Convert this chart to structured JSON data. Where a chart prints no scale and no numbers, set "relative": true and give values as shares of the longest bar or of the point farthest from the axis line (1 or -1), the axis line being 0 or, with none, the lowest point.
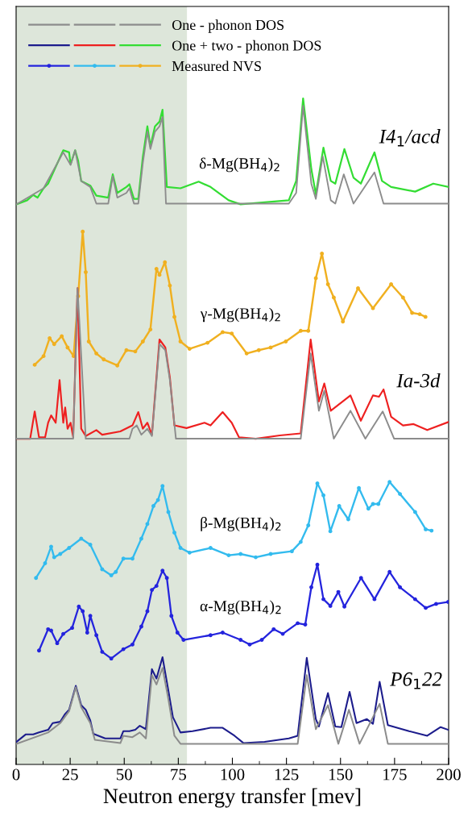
{
  "chart_data": {
    "type": "line",
    "relative": true,
    "xlabel": "Neutron energy transfer [mev]",
    "xlim": [
      0,
      200
    ],
    "xticks": [
      0,
      25,
      50,
      75,
      100,
      125,
      150,
      175,
      200
    ],
    "grid": false,
    "legend": "top left",
    "line_style": "solid",
    "bands": [
      {
        "axis": "x",
        "from": 0,
        "to": 79,
        "color": "#dde6da"
      }
    ],
    "annotations": [
      "δ-Mg(BH$_{4}$)$_{2}$",
      "I4$_{1}$/acd",
      "γ-Mg(BH$_{4}$)$_{2}$",
      "Ia-3d",
      "β-Mg(BH$_{4}$)$_{2}$",
      "α-Mg(BH$_{4}$)$_{2}$",
      "P6$_{1}$22"
    ],
    "series": [
      {
        "color": "#8c8c8c",
        "marker": "none",
        "x": [
          0.2,
          12.7,
          21.8,
          25.2,
          27.3,
          30.1,
          34.3,
          37.1,
          42.6,
          44.7,
          46.8,
          51.0,
          52.4,
          54.5,
          56.5,
          58.6,
          60.7,
          62.1,
          64.2,
          66.3,
          67.7,
          69.3,
          126.1,
          129.5,
          132.7,
          136.5,
          138.6,
          141.8,
          145.5,
          147.6,
          151.5,
          156.0,
          165.7,
          169.9,
          199.8
        ],
        "values": [
          0.841,
          0.865,
          0.919,
          0.9,
          0.922,
          0.876,
          0.867,
          0.842,
          0.842,
          0.883,
          0.851,
          0.858,
          0.865,
          0.842,
          0.842,
          0.903,
          0.95,
          0.924,
          0.95,
          0.958,
          0.972,
          0.842,
          0.842,
          0.858,
          0.989,
          0.872,
          0.849,
          0.913,
          0.847,
          0.842,
          0.886,
          0.842,
          0.889,
          0.842,
          0.842
        ]
      },
      {
        "color": "#8c8c8c",
        "marker": "none",
        "x": [
          0.2,
          26.4,
          28.4,
          32.2,
          52.4,
          53.8,
          55.8,
          57.9,
          60.7,
          62.8,
          66.3,
          69.0,
          71.1,
          73.9,
          131.6,
          136.2,
          140.0,
          142.5,
          146.9,
          154.6,
          161.5,
          169.5,
          174.8,
          199.8
        ],
        "values": [
          0.489,
          0.489,
          0.715,
          0.489,
          0.489,
          0.504,
          0.509,
          0.495,
          0.504,
          0.493,
          0.631,
          0.622,
          0.577,
          0.489,
          0.489,
          0.617,
          0.531,
          0.561,
          0.489,
          0.531,
          0.489,
          0.53,
          0.489,
          0.489
        ]
      },
      {
        "name": "One - phonon DOS",
        "color": "#8c8c8c",
        "marker": "none",
        "x": [
          0.2,
          14.8,
          20.4,
          24.5,
          27.6,
          30.1,
          34.3,
          36.4,
          48.2,
          49.6,
          53.8,
          57.2,
          60.0,
          62.8,
          64.9,
          67.7,
          70.4,
          73.2,
          76.0,
          130.2,
          134.4,
          138.6,
          144.2,
          149.0,
          153.9,
          158.8,
          168.1,
          171.9,
          199.8
        ],
        "values": [
          0.031,
          0.048,
          0.062,
          0.08,
          0.116,
          0.086,
          0.062,
          0.037,
          0.032,
          0.043,
          0.041,
          0.048,
          0.039,
          0.134,
          0.12,
          0.145,
          0.098,
          0.043,
          0.031,
          0.031,
          0.134,
          0.053,
          0.089,
          0.031,
          0.082,
          0.031,
          0.091,
          0.031,
          0.031
        ]
      },
      {
        "color": "#1c1c8c",
        "marker": "none",
        "x": [
          0.2,
          4.4,
          7.9,
          10.6,
          14.8,
          16.9,
          20.4,
          22.5,
          24.5,
          27.6,
          30.1,
          32.2,
          34.3,
          35.7,
          41.2,
          48.2,
          49.6,
          52.4,
          55.1,
          57.2,
          60.0,
          62.8,
          64.9,
          67.7,
          70.4,
          72.5,
          76.0,
          81.6,
          89.9,
          95.5,
          101.0,
          105.2,
          114.9,
          126.1,
          130.2,
          134.4,
          138.6,
          140.0,
          144.2,
          147.6,
          150.4,
          154.2,
          157.4,
          162.2,
          165.0,
          168.1,
          171.9,
          181.7,
          190.1,
          196.3,
          199.8
        ],
        "values": [
          0.034,
          0.045,
          0.045,
          0.048,
          0.052,
          0.062,
          0.064,
          0.075,
          0.082,
          0.118,
          0.089,
          0.082,
          0.066,
          0.046,
          0.039,
          0.039,
          0.05,
          0.05,
          0.052,
          0.058,
          0.053,
          0.143,
          0.129,
          0.161,
          0.111,
          0.071,
          0.048,
          0.05,
          0.055,
          0.055,
          0.043,
          0.032,
          0.034,
          0.039,
          0.043,
          0.16,
          0.068,
          0.057,
          0.107,
          0.057,
          0.056,
          0.109,
          0.062,
          0.068,
          0.061,
          0.124,
          0.059,
          0.05,
          0.043,
          0.056,
          0.052
        ]
      },
      {
        "color": "#ee2020",
        "marker": "none",
        "x": [
          0.2,
          6.5,
          8.6,
          10.6,
          13.4,
          14.8,
          16.2,
          18.3,
          20.1,
          21.8,
          22.7,
          23.8,
          25.2,
          26.4,
          28.4,
          30.1,
          32.2,
          37.1,
          39.8,
          48.2,
          53.8,
          56.5,
          58.6,
          60.7,
          62.8,
          66.3,
          69.0,
          71.1,
          73.2,
          78.8,
          87.1,
          89.9,
          95.5,
          99.7,
          103.1,
          110.8,
          121.9,
          131.6,
          136.2,
          140.0,
          142.5,
          145.5,
          154.6,
          159.4,
          165.0,
          167.8,
          169.9,
          173.4,
          178.9,
          183.8,
          190.1,
          199.8
        ],
        "values": [
          0.489,
          0.489,
          0.53,
          0.491,
          0.491,
          0.513,
          0.524,
          0.513,
          0.577,
          0.513,
          0.536,
          0.504,
          0.513,
          0.491,
          0.715,
          0.504,
          0.493,
          0.502,
          0.495,
          0.5,
          0.509,
          0.529,
          0.504,
          0.513,
          0.495,
          0.638,
          0.626,
          0.581,
          0.509,
          0.505,
          0.513,
          0.509,
          0.529,
          0.513,
          0.491,
          0.489,
          0.494,
          0.497,
          0.638,
          0.545,
          0.572,
          0.531,
          0.554,
          0.516,
          0.554,
          0.552,
          0.563,
          0.522,
          0.509,
          0.511,
          0.502,
          0.514
        ]
      },
      {
        "name": "One + two - phonon DOS",
        "color": "#33dd33",
        "marker": "none",
        "x": [
          0.2,
          5.1,
          7.9,
          9.9,
          12.7,
          14.8,
          18.3,
          21.8,
          24.5,
          25.2,
          27.3,
          28.7,
          30.1,
          34.3,
          37.1,
          42.6,
          44.7,
          46.8,
          51.0,
          52.4,
          54.5,
          56.5,
          58.6,
          60.7,
          62.1,
          64.2,
          66.3,
          67.7,
          69.7,
          76.0,
          84.4,
          89.9,
          98.3,
          103.8,
          114.9,
          126.1,
          129.5,
          132.7,
          136.5,
          138.6,
          142.1,
          145.5,
          147.6,
          151.8,
          156.0,
          159.4,
          165.7,
          169.2,
          173.4,
          184.5,
          192.9,
          199.8
        ],
        "values": [
          0.841,
          0.847,
          0.855,
          0.851,
          0.865,
          0.872,
          0.897,
          0.922,
          0.919,
          0.901,
          0.922,
          0.906,
          0.876,
          0.869,
          0.854,
          0.851,
          0.886,
          0.858,
          0.867,
          0.871,
          0.849,
          0.849,
          0.912,
          0.958,
          0.928,
          0.958,
          0.965,
          0.983,
          0.867,
          0.865,
          0.875,
          0.867,
          0.847,
          0.841,
          0.844,
          0.847,
          0.876,
          1.0,
          0.894,
          0.856,
          0.926,
          0.876,
          0.872,
          0.924,
          0.881,
          0.872,
          0.919,
          0.876,
          0.867,
          0.86,
          0.872,
          0.867
        ]
      },
      {
        "color": "#2424dd",
        "marker": "circle",
        "x": [
          10.6,
          14.8,
          16.2,
          19.0,
          21.8,
          25.9,
          29.0,
          30.8,
          32.9,
          34.3,
          37.1,
          39.8,
          44.0,
          49.6,
          53.8,
          57.9,
          60.7,
          62.8,
          64.9,
          67.7,
          69.7,
          71.8,
          74.6,
          77.4,
          89.9,
          95.5,
          103.8,
          108.0,
          113.6,
          119.1,
          123.3,
          130.2,
          133.7,
          136.5,
          139.3,
          142.1,
          145.3,
          149.0,
          151.8,
          159.5,
          165.7,
          172.7,
          177.5,
          184.5,
          189.4,
          194.2,
          199.8
        ],
        "values": [
          0.171,
          0.203,
          0.201,
          0.182,
          0.196,
          0.205,
          0.237,
          0.23,
          0.198,
          0.223,
          0.194,
          0.169,
          0.159,
          0.173,
          0.18,
          0.207,
          0.23,
          0.262,
          0.268,
          0.291,
          0.28,
          0.223,
          0.198,
          0.187,
          0.194,
          0.198,
          0.187,
          0.18,
          0.187,
          0.203,
          0.196,
          0.212,
          0.21,
          0.266,
          0.3,
          0.248,
          0.238,
          0.259,
          0.237,
          0.28,
          0.248,
          0.289,
          0.266,
          0.248,
          0.235,
          0.241,
          0.244
        ]
      },
      {
        "color": "#33bbee",
        "marker": "circle",
        "x": [
          9.2,
          13.4,
          16.2,
          17.6,
          20.4,
          24.5,
          30.1,
          34.3,
          39.8,
          44.0,
          46.1,
          49.6,
          53.8,
          57.9,
          60.7,
          63.5,
          65.6,
          67.7,
          70.4,
          73.2,
          76.0,
          80.2,
          89.9,
          98.3,
          103.8,
          110.8,
          117.7,
          127.5,
          131.6,
          135.1,
          139.3,
          142.1,
          145.3,
          149.4,
          153.6,
          158.5,
          162.9,
          165.0,
          167.5,
          172.7,
          177.5,
          184.5,
          189.4,
          192.1
        ],
        "values": [
          0.28,
          0.302,
          0.327,
          0.311,
          0.316,
          0.325,
          0.339,
          0.33,
          0.293,
          0.284,
          0.289,
          0.309,
          0.309,
          0.339,
          0.361,
          0.388,
          0.397,
          0.418,
          0.379,
          0.348,
          0.325,
          0.318,
          0.325,
          0.314,
          0.316,
          0.311,
          0.316,
          0.32,
          0.334,
          0.359,
          0.422,
          0.404,
          0.35,
          0.388,
          0.368,
          0.415,
          0.384,
          0.391,
          0.391,
          0.424,
          0.406,
          0.379,
          0.353,
          0.351
        ]
      },
      {
        "name": "Measured NVS",
        "color": "#f0b020",
        "marker": "circle",
        "x": [
          8.6,
          12.7,
          15.5,
          17.6,
          21.1,
          23.8,
          26.6,
          28.7,
          30.8,
          32.2,
          33.6,
          37.1,
          40.5,
          46.8,
          51.0,
          55.1,
          58.6,
          62.1,
          64.9,
          66.3,
          68.8,
          71.1,
          73.2,
          76.0,
          80.2,
          88.5,
          95.5,
          99.7,
          106.6,
          112.2,
          117.7,
          124.7,
          131.6,
          135.1,
          138.6,
          141.4,
          144.2,
          146.9,
          151.1,
          158.1,
          165.0,
          173.4,
          178.9,
          183.1,
          186.6,
          189.3
        ],
        "values": [
          0.6,
          0.613,
          0.64,
          0.631,
          0.643,
          0.626,
          0.613,
          0.703,
          0.8,
          0.739,
          0.635,
          0.617,
          0.608,
          0.599,
          0.622,
          0.62,
          0.635,
          0.653,
          0.744,
          0.735,
          0.754,
          0.719,
          0.672,
          0.635,
          0.624,
          0.633,
          0.649,
          0.647,
          0.617,
          0.622,
          0.626,
          0.635,
          0.651,
          0.651,
          0.73,
          0.767,
          0.721,
          0.701,
          0.665,
          0.715,
          0.685,
          0.721,
          0.701,
          0.678,
          0.676,
          0.672
        ]
      }
    ]
  }
}
